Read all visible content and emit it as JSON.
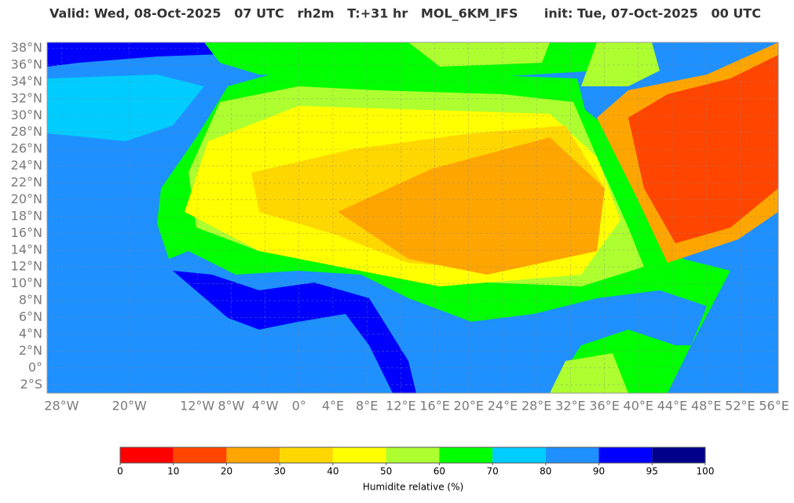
{
  "header": {
    "title": "Valid: Wed, 08-Oct-2025   07 UTC   rh2m   T:+31 hr   MOL_6KM_IFS      init: Tue, 07-Oct-2025   00 UTC"
  },
  "map": {
    "xlim": [
      -29.7,
      56.5
    ],
    "ylim": [
      -3,
      38.7
    ],
    "lat_ticks": [
      {
        "value": 38,
        "label": "38°N"
      },
      {
        "value": 36,
        "label": "36°N"
      },
      {
        "value": 34,
        "label": "34°N"
      },
      {
        "value": 32,
        "label": "32°N"
      },
      {
        "value": 30,
        "label": "30°N"
      },
      {
        "value": 28,
        "label": "28°N"
      },
      {
        "value": 26,
        "label": "26°N"
      },
      {
        "value": 24,
        "label": "24°N"
      },
      {
        "value": 22,
        "label": "22°N"
      },
      {
        "value": 20,
        "label": "20°N"
      },
      {
        "value": 18,
        "label": "18°N"
      },
      {
        "value": 16,
        "label": "16°N"
      },
      {
        "value": 14,
        "label": "14°N"
      },
      {
        "value": 12,
        "label": "12°N"
      },
      {
        "value": 10,
        "label": "10°N"
      },
      {
        "value": 8,
        "label": "8°N"
      },
      {
        "value": 6,
        "label": "6°N"
      },
      {
        "value": 4,
        "label": "4°N"
      },
      {
        "value": 2,
        "label": "2°N"
      },
      {
        "value": 0,
        "label": "0°"
      },
      {
        "value": -2,
        "label": "2°S"
      }
    ],
    "lon_ticks": [
      {
        "value": -28,
        "label": "28°W"
      },
      {
        "value": -20,
        "label": "20°W"
      },
      {
        "value": -12,
        "label": "12°W"
      },
      {
        "value": -8,
        "label": "8°W"
      },
      {
        "value": -4,
        "label": "4°W"
      },
      {
        "value": 0,
        "label": "0°"
      },
      {
        "value": 4,
        "label": "4°E"
      },
      {
        "value": 8,
        "label": "8°E"
      },
      {
        "value": 12,
        "label": "12°E"
      },
      {
        "value": 16,
        "label": "16°E"
      },
      {
        "value": 20,
        "label": "20°E"
      },
      {
        "value": 24,
        "label": "24°E"
      },
      {
        "value": 28,
        "label": "28°E"
      },
      {
        "value": 32,
        "label": "32°E"
      },
      {
        "value": 36,
        "label": "36°E"
      },
      {
        "value": 40,
        "label": "40°E"
      },
      {
        "value": 44,
        "label": "44°E"
      },
      {
        "value": 48,
        "label": "48°E"
      },
      {
        "value": 52,
        "label": "52°E"
      },
      {
        "value": 56,
        "label": "56°E"
      }
    ]
  },
  "colorbar": {
    "label": "Humidite relative (%)",
    "ticks": [
      0,
      10,
      20,
      30,
      40,
      50,
      60,
      70,
      80,
      90,
      95,
      100
    ],
    "colors": [
      "#ff0000",
      "#ff4500",
      "#ffa500",
      "#ffd700",
      "#ffff00",
      "#adff2f",
      "#00ff00",
      "#00ccff",
      "#1e90ff",
      "#0000ff",
      "#00008b"
    ]
  }
}
